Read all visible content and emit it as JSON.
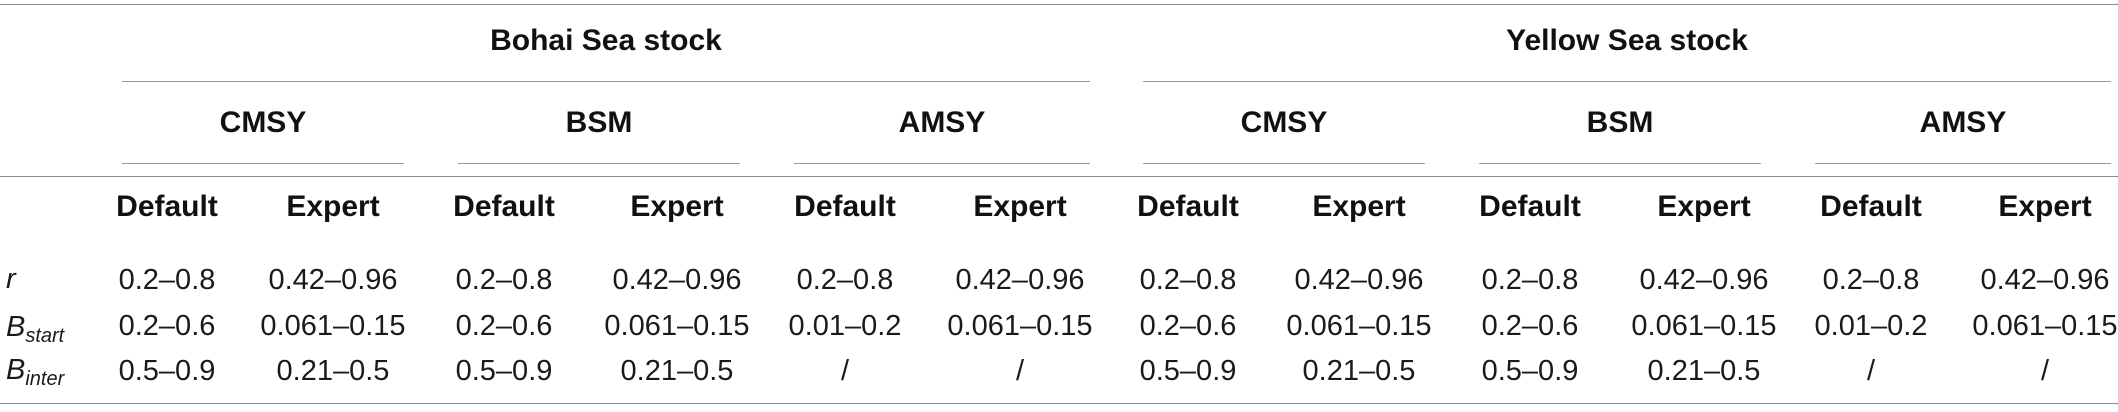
{
  "stocks": [
    {
      "name": "Bohai Sea stock"
    },
    {
      "name": "Yellow Sea stock"
    }
  ],
  "methods": [
    "CMSY",
    "BSM",
    "AMSY",
    "CMSY",
    "BSM",
    "AMSY"
  ],
  "settings": [
    "Default",
    "Expert",
    "Default",
    "Expert",
    "Default",
    "Expert",
    "Default",
    "Expert",
    "Default",
    "Expert",
    "Default",
    "Expert"
  ],
  "rows": [
    {
      "label_main": "r",
      "label_sub": "",
      "values": [
        "0.2–0.8",
        "0.42–0.96",
        "0.2–0.8",
        "0.42–0.96",
        "0.2–0.8",
        "0.42–0.96",
        "0.2–0.8",
        "0.42–0.96",
        "0.2–0.8",
        "0.42–0.96",
        "0.2–0.8",
        "0.42–0.96"
      ]
    },
    {
      "label_main": "B",
      "label_sub": "start",
      "values": [
        "0.2–0.6",
        "0.061–0.15",
        "0.2–0.6",
        "0.061–0.15",
        "0.01–0.2",
        "0.061–0.15",
        "0.2–0.6",
        "0.061–0.15",
        "0.2–0.6",
        "0.061–0.15",
        "0.01–0.2",
        "0.061–0.15"
      ]
    },
    {
      "label_main": "B",
      "label_sub": "inter",
      "values": [
        "0.5–0.9",
        "0.21–0.5",
        "0.5–0.9",
        "0.21–0.5",
        "/",
        "/",
        "0.5–0.9",
        "0.21–0.5",
        "0.5–0.9",
        "0.21–0.5",
        "/",
        "/"
      ]
    }
  ]
}
